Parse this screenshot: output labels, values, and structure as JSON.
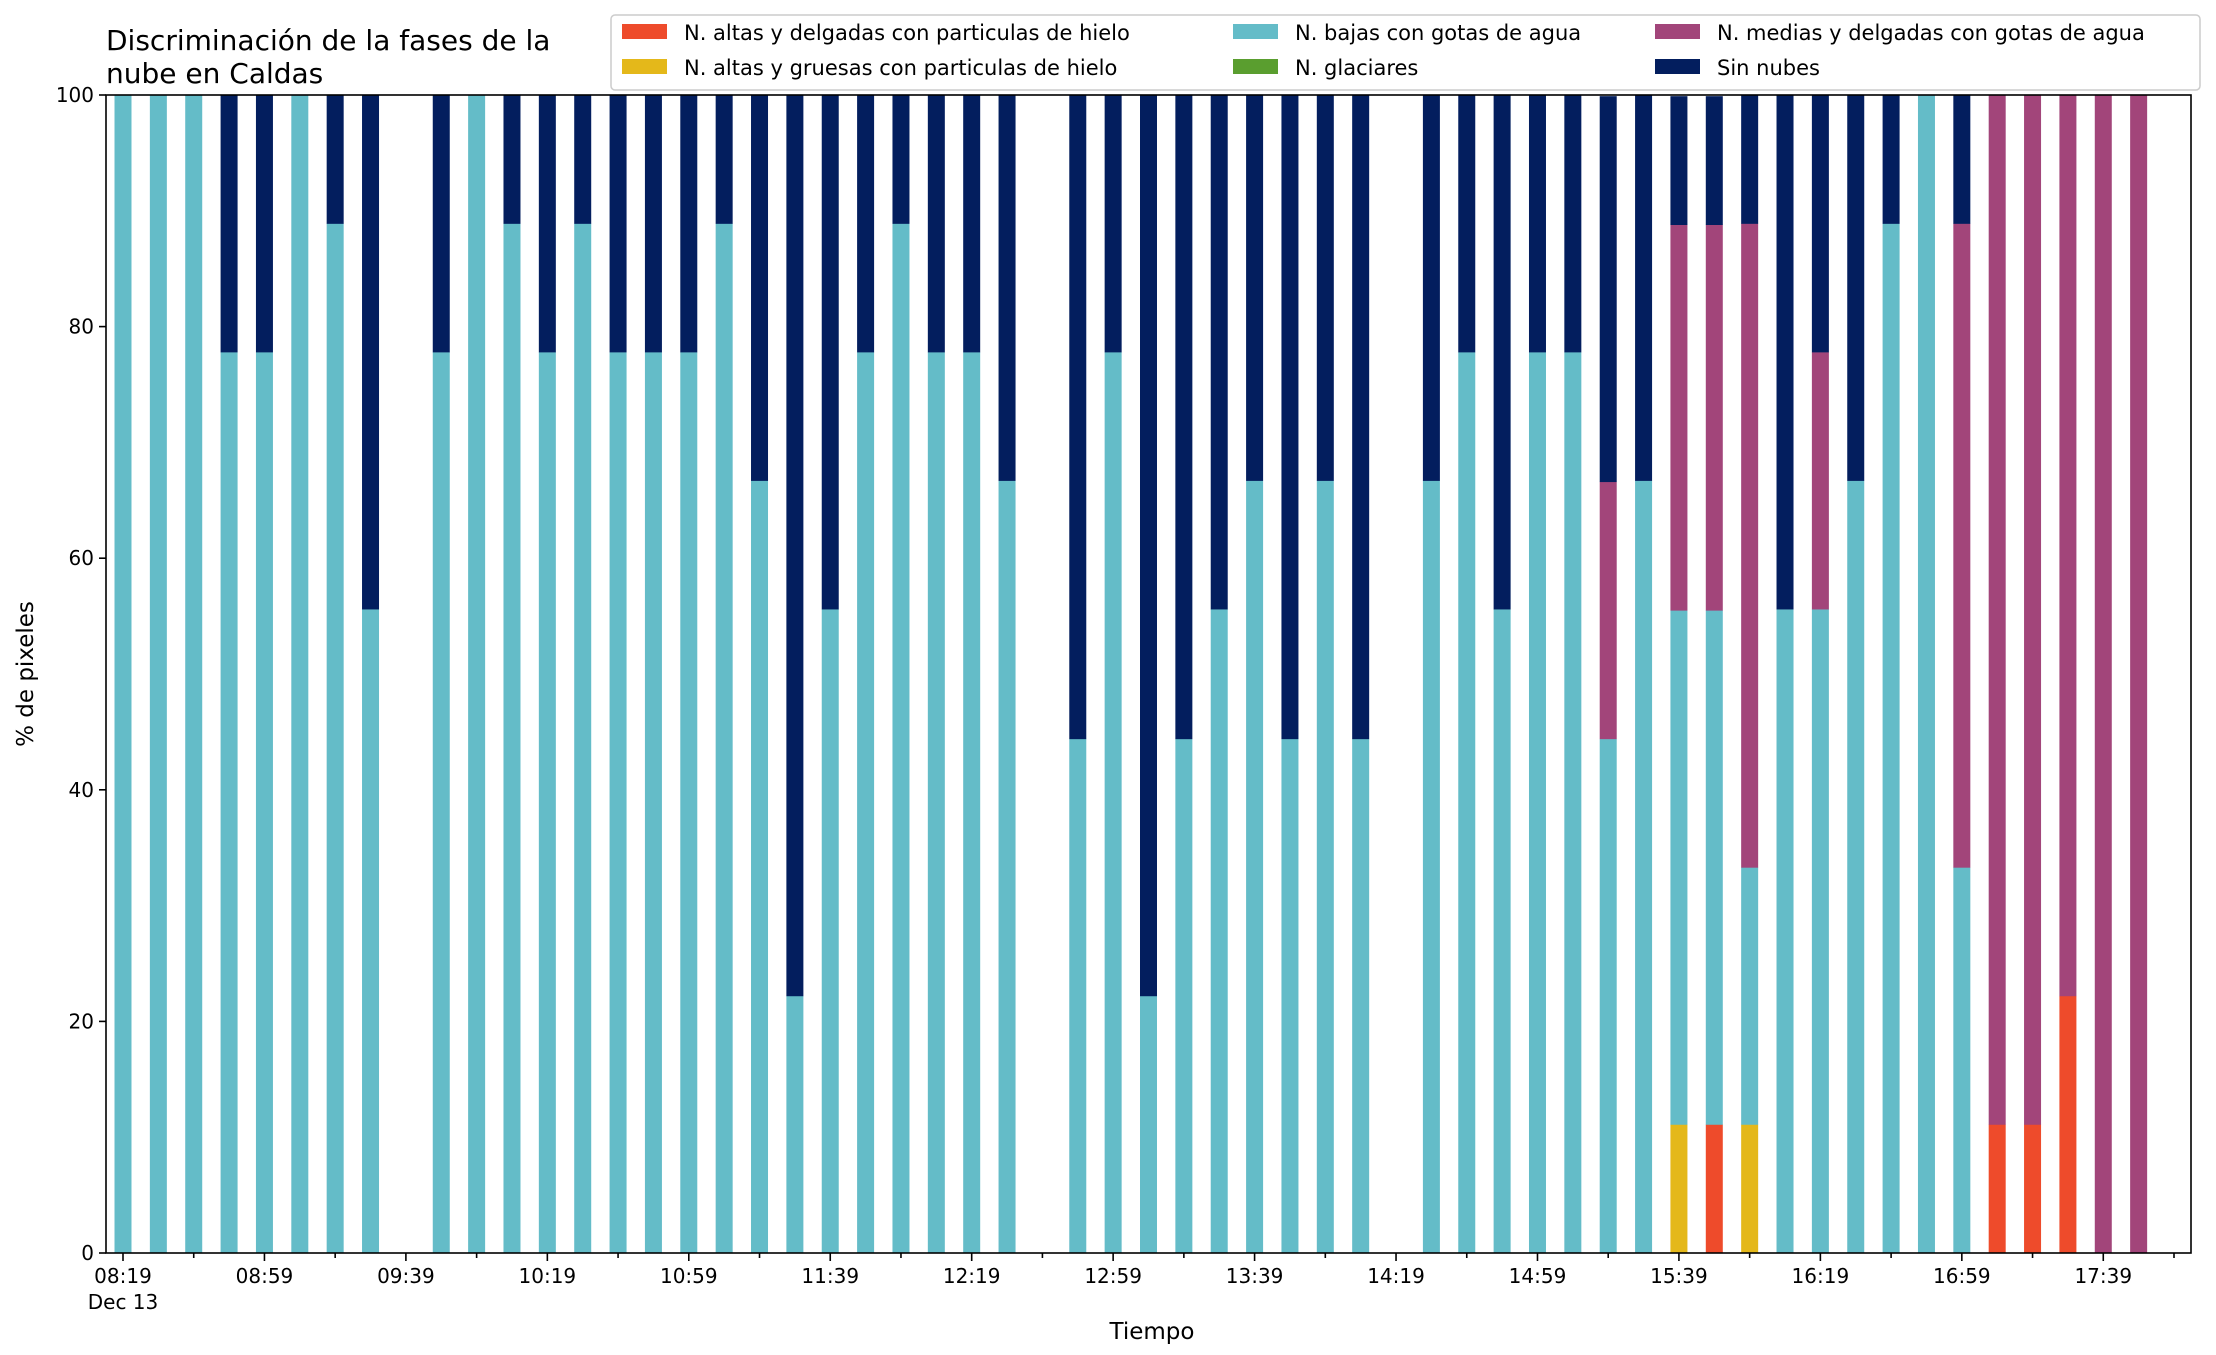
{
  "chart_data": {
    "type": "bar",
    "stacked": true,
    "title": "Discriminación de la fases de la\nnube en Caldas",
    "xlabel": "Tiempo",
    "ylabel": "% de pixeles",
    "ylim": [
      0,
      100
    ],
    "yticks": [
      0,
      20,
      40,
      60,
      80,
      100
    ],
    "x_start": "08:19",
    "x_end": "17:59",
    "x_tick_labels": [
      {
        "time": "08:19",
        "label": "08:19",
        "sublabel": "Dec 13"
      },
      {
        "time": "08:59",
        "label": "08:59"
      },
      {
        "time": "09:39",
        "label": "09:39"
      },
      {
        "time": "10:19",
        "label": "10:19"
      },
      {
        "time": "10:59",
        "label": "10:59"
      },
      {
        "time": "11:39",
        "label": "11:39"
      },
      {
        "time": "12:19",
        "label": "12:19"
      },
      {
        "time": "12:59",
        "label": "12:59"
      },
      {
        "time": "13:39",
        "label": "13:39"
      },
      {
        "time": "14:19",
        "label": "14:19"
      },
      {
        "time": "14:59",
        "label": "14:59"
      },
      {
        "time": "15:39",
        "label": "15:39"
      },
      {
        "time": "16:19",
        "label": "16:19"
      },
      {
        "time": "16:59",
        "label": "16:59"
      },
      {
        "time": "17:39",
        "label": "17:39"
      }
    ],
    "legend_placement": "top-right",
    "series": [
      {
        "name": "N. altas y delgadas con particulas de hielo",
        "color": "#ee4b2b"
      },
      {
        "name": "N. altas y gruesas con particulas de hielo",
        "color": "#e4b81a"
      },
      {
        "name": "N. bajas con gotas de agua",
        "color": "#64bcc8"
      },
      {
        "name": "N. glaciares",
        "color": "#5a9e2f"
      },
      {
        "name": "N. medias y delgadas con gotas de agua",
        "color": "#a2457a"
      },
      {
        "name": "Sin nubes",
        "color": "#031e5e"
      }
    ],
    "bars": [
      {
        "time": "08:19",
        "values": [
          0,
          0,
          100,
          0,
          0,
          0
        ]
      },
      {
        "time": "08:29",
        "values": [
          0,
          0,
          100,
          0,
          0,
          0
        ]
      },
      {
        "time": "08:39",
        "values": [
          0,
          0,
          100,
          0,
          0,
          0
        ]
      },
      {
        "time": "08:49",
        "values": [
          0,
          0,
          77.8,
          0,
          0,
          22.2
        ]
      },
      {
        "time": "08:59",
        "values": [
          0,
          0,
          77.8,
          0,
          0,
          22.2
        ]
      },
      {
        "time": "09:09",
        "values": [
          0,
          0,
          100,
          0,
          0,
          0
        ]
      },
      {
        "time": "09:19",
        "values": [
          0,
          0,
          88.9,
          0,
          0,
          11.1
        ]
      },
      {
        "time": "09:29",
        "values": [
          0,
          0,
          55.6,
          0,
          0,
          44.4
        ]
      },
      {
        "time": "09:49",
        "values": [
          0,
          0,
          77.8,
          0,
          0,
          22.2
        ]
      },
      {
        "time": "09:59",
        "values": [
          0,
          0,
          100,
          0,
          0,
          0
        ]
      },
      {
        "time": "10:09",
        "values": [
          0,
          0,
          88.9,
          0,
          0,
          11.1
        ]
      },
      {
        "time": "10:19",
        "values": [
          0,
          0,
          77.8,
          0,
          0,
          22.2
        ]
      },
      {
        "time": "10:29",
        "values": [
          0,
          0,
          88.9,
          0,
          0,
          11.1
        ]
      },
      {
        "time": "10:39",
        "values": [
          0,
          0,
          77.8,
          0,
          0,
          22.2
        ]
      },
      {
        "time": "10:49",
        "values": [
          0,
          0,
          77.8,
          0,
          0,
          22.2
        ]
      },
      {
        "time": "10:59",
        "values": [
          0,
          0,
          77.8,
          0,
          0,
          22.2
        ]
      },
      {
        "time": "11:09",
        "values": [
          0,
          0,
          88.9,
          0,
          0,
          11.1
        ]
      },
      {
        "time": "11:19",
        "values": [
          0,
          0,
          66.7,
          0,
          0,
          33.3
        ]
      },
      {
        "time": "11:29",
        "values": [
          0,
          0,
          22.2,
          0,
          0,
          77.8
        ]
      },
      {
        "time": "11:39",
        "values": [
          0,
          0,
          55.6,
          0,
          0,
          44.4
        ]
      },
      {
        "time": "11:49",
        "values": [
          0,
          0,
          77.8,
          0,
          0,
          22.2
        ]
      },
      {
        "time": "11:59",
        "values": [
          0,
          0,
          88.9,
          0,
          0,
          11.1
        ]
      },
      {
        "time": "12:09",
        "values": [
          0,
          0,
          77.8,
          0,
          0,
          22.2
        ]
      },
      {
        "time": "12:19",
        "values": [
          0,
          0,
          77.8,
          0,
          0,
          22.2
        ]
      },
      {
        "time": "12:29",
        "values": [
          0,
          0,
          66.7,
          0,
          0,
          33.3
        ]
      },
      {
        "time": "12:49",
        "values": [
          0,
          0,
          44.4,
          0,
          0,
          55.6
        ]
      },
      {
        "time": "12:59",
        "values": [
          0,
          0,
          77.8,
          0,
          0,
          22.2
        ]
      },
      {
        "time": "13:09",
        "values": [
          0,
          0,
          22.2,
          0,
          0,
          77.8
        ]
      },
      {
        "time": "13:19",
        "values": [
          0,
          0,
          44.4,
          0,
          0,
          55.6
        ]
      },
      {
        "time": "13:29",
        "values": [
          0,
          0,
          55.6,
          0,
          0,
          44.4
        ]
      },
      {
        "time": "13:39",
        "values": [
          0,
          0,
          66.7,
          0,
          0,
          33.3
        ]
      },
      {
        "time": "13:49",
        "values": [
          0,
          0,
          44.4,
          0,
          0,
          55.6
        ]
      },
      {
        "time": "13:59",
        "values": [
          0,
          0,
          66.7,
          0,
          0,
          33.3
        ]
      },
      {
        "time": "14:09",
        "values": [
          0,
          0,
          44.4,
          0,
          0,
          55.6
        ]
      },
      {
        "time": "14:29",
        "values": [
          0,
          0,
          66.7,
          0,
          0,
          33.3
        ]
      },
      {
        "time": "14:39",
        "values": [
          0,
          0,
          77.8,
          0,
          0,
          22.2
        ]
      },
      {
        "time": "14:49",
        "values": [
          0,
          0,
          55.6,
          0,
          0,
          44.4
        ]
      },
      {
        "time": "14:59",
        "values": [
          0,
          0,
          77.8,
          0,
          0,
          22.2
        ]
      },
      {
        "time": "15:09",
        "values": [
          0,
          0,
          77.8,
          0,
          0,
          22.2
        ]
      },
      {
        "time": "15:19",
        "values": [
          0,
          0,
          44.4,
          0,
          22.2,
          33.3
        ]
      },
      {
        "time": "15:29",
        "values": [
          0,
          0,
          66.7,
          0,
          0,
          33.3
        ]
      },
      {
        "time": "15:39",
        "values": [
          0,
          11.1,
          44.4,
          0,
          33.3,
          11.1
        ]
      },
      {
        "time": "15:49",
        "values": [
          11.1,
          0,
          44.4,
          0,
          33.3,
          11.1
        ]
      },
      {
        "time": "15:59",
        "values": [
          0,
          11.1,
          22.2,
          0,
          55.6,
          11.1
        ]
      },
      {
        "time": "16:09",
        "values": [
          0,
          0,
          55.6,
          0,
          0,
          44.4
        ]
      },
      {
        "time": "16:19",
        "values": [
          0,
          0,
          55.6,
          0,
          22.2,
          22.2
        ]
      },
      {
        "time": "16:29",
        "values": [
          0,
          0,
          66.7,
          0,
          0,
          33.3
        ]
      },
      {
        "time": "16:39",
        "values": [
          0,
          0,
          88.9,
          0,
          0,
          11.1
        ]
      },
      {
        "time": "16:49",
        "values": [
          0,
          0,
          100,
          0,
          0,
          0
        ]
      },
      {
        "time": "16:59",
        "values": [
          0,
          0,
          33.3,
          0,
          55.6,
          11.1
        ]
      },
      {
        "time": "17:09",
        "values": [
          11.1,
          0,
          0,
          0,
          88.9,
          0
        ]
      },
      {
        "time": "17:19",
        "values": [
          11.1,
          0,
          0,
          0,
          88.9,
          0
        ]
      },
      {
        "time": "17:29",
        "values": [
          22.2,
          0,
          0,
          0,
          77.8,
          0
        ]
      },
      {
        "time": "17:39",
        "values": [
          0,
          0,
          0,
          0,
          100,
          0
        ]
      },
      {
        "time": "17:49",
        "values": [
          0,
          0,
          0,
          0,
          100,
          0
        ]
      }
    ]
  }
}
